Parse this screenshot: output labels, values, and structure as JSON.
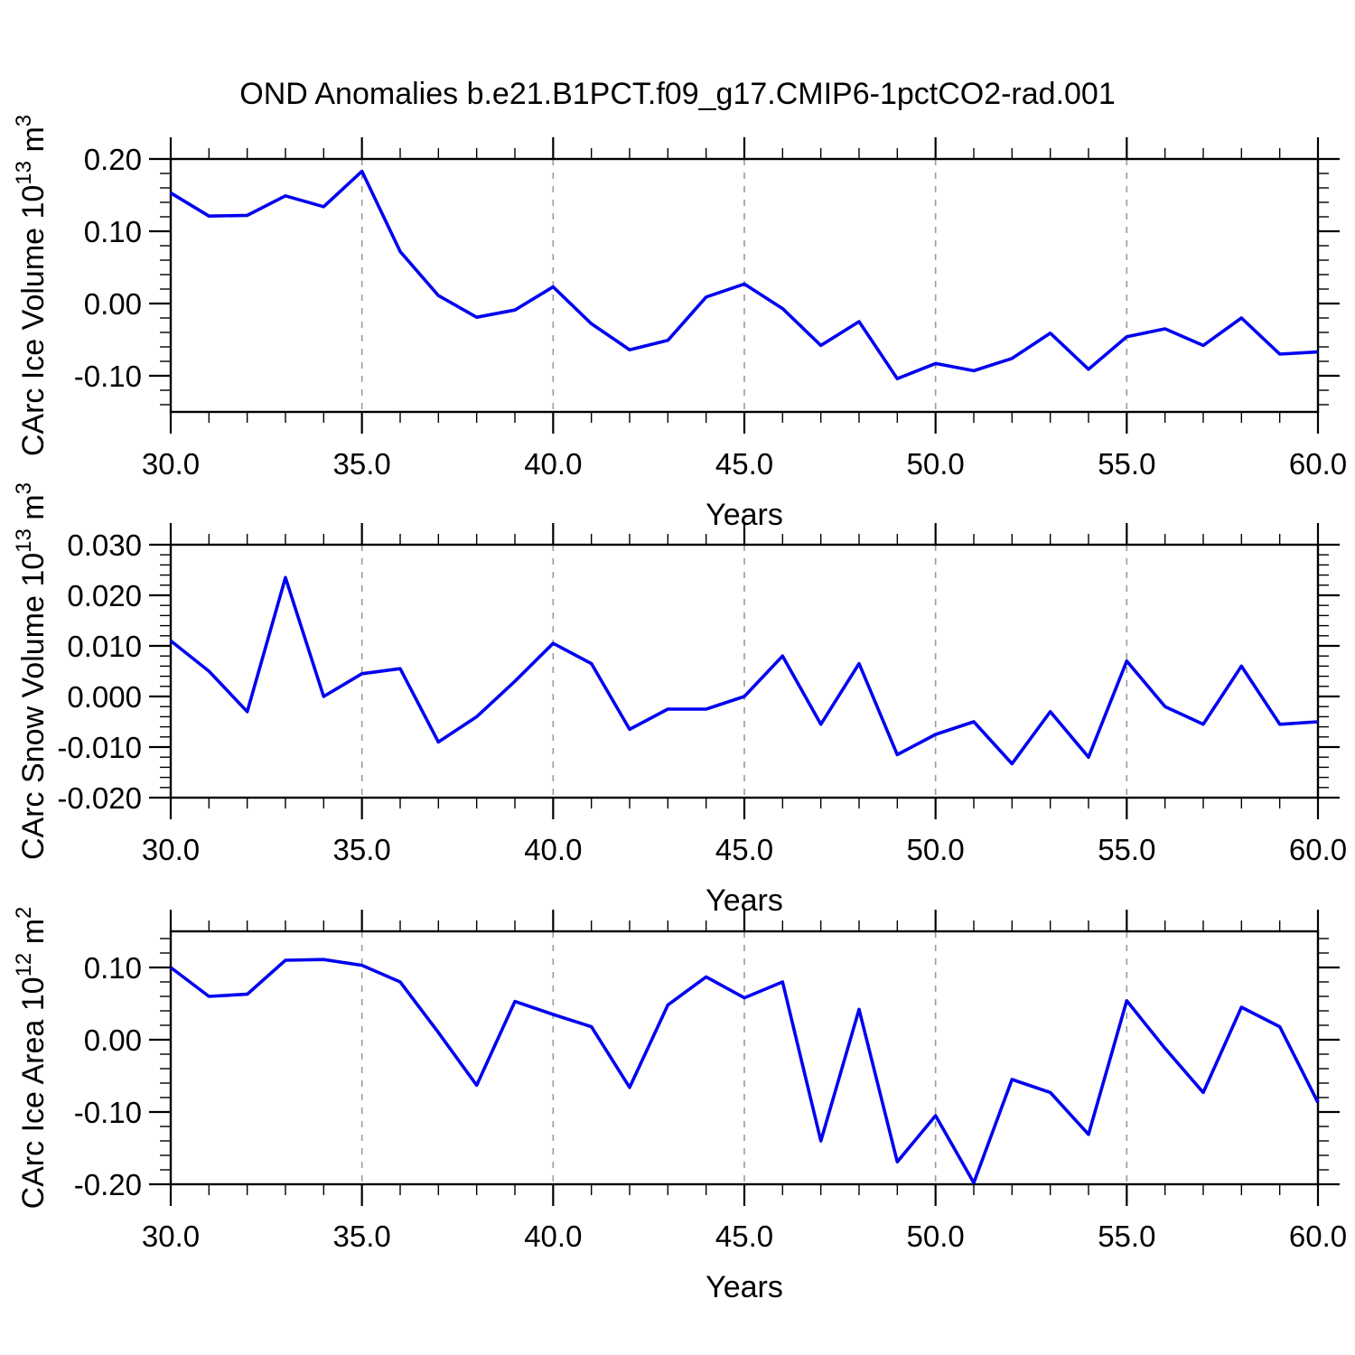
{
  "title": "OND Anomalies b.e21.B1PCT.f09_g17.CMIP6-1pctCO2-rad.001",
  "xlabel": "Years",
  "line_color": "#0000f0",
  "grid_color": "#9a9a9a",
  "chart_data": [
    {
      "type": "line",
      "name": "carc-ice-volume",
      "ylabel_plain": "CArc Ice Volume 10^13 m^3",
      "ylabel_segments": [
        {
          "text": "CArc Ice Volume 10"
        },
        {
          "text": "13",
          "sup": true
        },
        {
          "text": " m"
        },
        {
          "text": "3",
          "sup": true
        }
      ],
      "xlabel": "Years",
      "x": [
        30,
        31,
        32,
        33,
        34,
        35,
        36,
        37,
        38,
        39,
        40,
        41,
        42,
        43,
        44,
        45,
        46,
        47,
        48,
        49,
        50,
        51,
        52,
        53,
        54,
        55,
        56,
        57,
        58,
        59,
        60
      ],
      "values": [
        0.153,
        0.121,
        0.122,
        0.149,
        0.134,
        0.183,
        0.072,
        0.011,
        -0.019,
        -0.009,
        0.023,
        -0.028,
        -0.064,
        -0.051,
        0.009,
        0.027,
        -0.007,
        -0.058,
        -0.025,
        -0.104,
        -0.083,
        -0.093,
        -0.076,
        -0.041,
        -0.091,
        -0.046,
        -0.035,
        -0.058,
        -0.02,
        -0.07,
        -0.067
      ],
      "xlim": [
        30,
        60
      ],
      "ylim": [
        -0.15,
        0.2
      ],
      "yticks": [
        {
          "v": 0.2,
          "label": "0.20"
        },
        {
          "v": 0.1,
          "label": "0.10"
        },
        {
          "v": 0.0,
          "label": "0.00"
        },
        {
          "v": -0.1,
          "label": "-0.10"
        }
      ],
      "yminor_step": 0.02,
      "xticks": [
        {
          "v": 30,
          "label": "30.0"
        },
        {
          "v": 35,
          "label": "35.0"
        },
        {
          "v": 40,
          "label": "40.0"
        },
        {
          "v": 45,
          "label": "45.0"
        },
        {
          "v": 50,
          "label": "50.0"
        },
        {
          "v": 55,
          "label": "55.0"
        },
        {
          "v": 60,
          "label": "60.0"
        }
      ],
      "xminor_step": 1,
      "grid_x": [
        35,
        40,
        45,
        50,
        55
      ],
      "grid_on": true,
      "legend": "none"
    },
    {
      "type": "line",
      "name": "carc-snow-volume",
      "ylabel_plain": "CArc Snow Volume 10^13 m^3",
      "ylabel_segments": [
        {
          "text": "CArc Snow Volume 10"
        },
        {
          "text": "13",
          "sup": true
        },
        {
          "text": " m"
        },
        {
          "text": "3",
          "sup": true
        }
      ],
      "xlabel": "Years",
      "x": [
        30,
        31,
        32,
        33,
        34,
        35,
        36,
        37,
        38,
        39,
        40,
        41,
        42,
        43,
        44,
        45,
        46,
        47,
        48,
        49,
        50,
        51,
        52,
        53,
        54,
        55,
        56,
        57,
        58,
        59,
        60
      ],
      "values": [
        0.011,
        0.005,
        -0.003,
        0.0235,
        0.0,
        0.0045,
        0.0055,
        -0.009,
        -0.004,
        0.003,
        0.0105,
        0.0065,
        -0.0065,
        -0.0025,
        -0.0025,
        0.0,
        0.008,
        -0.0055,
        0.0065,
        -0.0115,
        -0.0075,
        -0.005,
        -0.0133,
        -0.003,
        -0.012,
        0.007,
        -0.002,
        -0.0055,
        0.006,
        -0.0055,
        -0.005
      ],
      "xlim": [
        30,
        60
      ],
      "ylim": [
        -0.02,
        0.03
      ],
      "yticks": [
        {
          "v": 0.03,
          "label": "0.030"
        },
        {
          "v": 0.02,
          "label": "0.020"
        },
        {
          "v": 0.01,
          "label": "0.010"
        },
        {
          "v": 0.0,
          "label": "0.000"
        },
        {
          "v": -0.01,
          "label": "-0.010"
        },
        {
          "v": -0.02,
          "label": "-0.020"
        }
      ],
      "yminor_step": 0.002,
      "xticks": [
        {
          "v": 30,
          "label": "30.0"
        },
        {
          "v": 35,
          "label": "35.0"
        },
        {
          "v": 40,
          "label": "40.0"
        },
        {
          "v": 45,
          "label": "45.0"
        },
        {
          "v": 50,
          "label": "50.0"
        },
        {
          "v": 55,
          "label": "55.0"
        },
        {
          "v": 60,
          "label": "60.0"
        }
      ],
      "xminor_step": 1,
      "grid_x": [
        35,
        40,
        45,
        50,
        55
      ],
      "grid_on": true,
      "legend": "none"
    },
    {
      "type": "line",
      "name": "carc-ice-area",
      "ylabel_plain": "CArc Ice Area 10^12 m^2",
      "ylabel_segments": [
        {
          "text": "CArc Ice Area 10"
        },
        {
          "text": "12",
          "sup": true
        },
        {
          "text": " m"
        },
        {
          "text": "2",
          "sup": true
        }
      ],
      "xlabel": "Years",
      "x": [
        30,
        31,
        32,
        33,
        34,
        35,
        36,
        37,
        38,
        39,
        40,
        41,
        42,
        43,
        44,
        45,
        46,
        47,
        48,
        49,
        50,
        51,
        52,
        53,
        54,
        55,
        56,
        57,
        58,
        59,
        60
      ],
      "values": [
        0.1,
        0.06,
        0.063,
        0.11,
        0.111,
        0.103,
        0.08,
        0.01,
        -0.063,
        0.053,
        0.035,
        0.018,
        -0.066,
        0.048,
        0.087,
        0.058,
        0.08,
        -0.14,
        0.042,
        -0.169,
        -0.105,
        -0.198,
        -0.055,
        -0.073,
        -0.131,
        0.054,
        -0.012,
        -0.073,
        0.045,
        0.018,
        -0.087
      ],
      "xlim": [
        30,
        60
      ],
      "ylim": [
        -0.2,
        0.15
      ],
      "yticks": [
        {
          "v": 0.1,
          "label": "0.10"
        },
        {
          "v": 0.0,
          "label": "0.00"
        },
        {
          "v": -0.1,
          "label": "-0.10"
        },
        {
          "v": -0.2,
          "label": "-0.20"
        }
      ],
      "yminor_step": 0.02,
      "xticks": [
        {
          "v": 30,
          "label": "30.0"
        },
        {
          "v": 35,
          "label": "35.0"
        },
        {
          "v": 40,
          "label": "40.0"
        },
        {
          "v": 45,
          "label": "45.0"
        },
        {
          "v": 50,
          "label": "50.0"
        },
        {
          "v": 55,
          "label": "55.0"
        },
        {
          "v": 60,
          "label": "60.0"
        }
      ],
      "xminor_step": 1,
      "grid_x": [
        35,
        40,
        45,
        50,
        55
      ],
      "grid_on": true,
      "legend": "none"
    }
  ]
}
